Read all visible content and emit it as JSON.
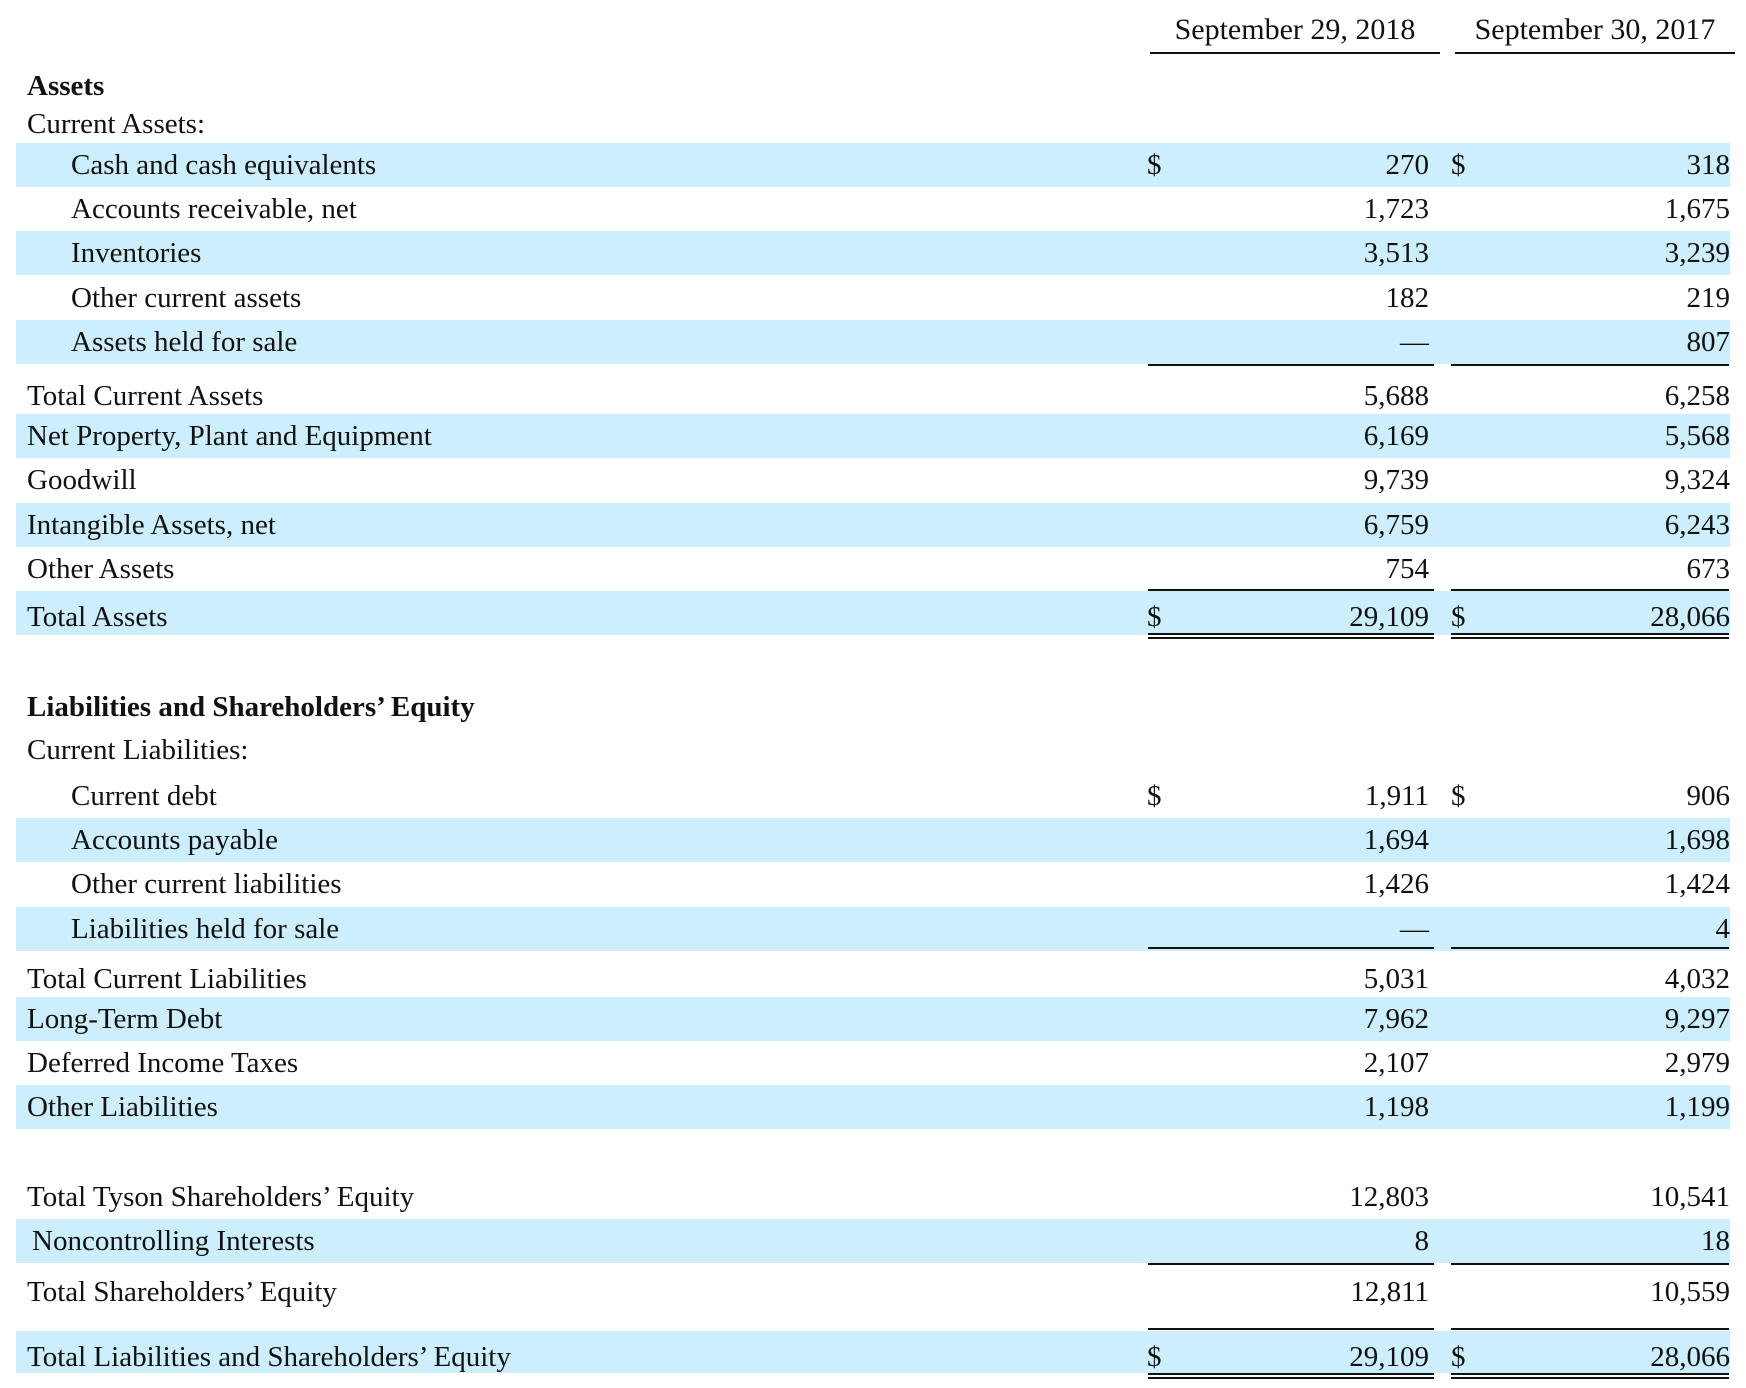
{
  "columns": {
    "col1_header": "September 29, 2018",
    "col2_header": "September 30, 2017"
  },
  "assets": {
    "heading": "Assets",
    "current_heading": "Current Assets:",
    "cash": {
      "label": "Cash and cash equivalents",
      "c1_dollar": "$",
      "c1": "270",
      "c2_dollar": "$",
      "c2": "318"
    },
    "receivable": {
      "label": "Accounts receivable, net",
      "c1": "1,723",
      "c2": "1,675"
    },
    "inventories": {
      "label": "Inventories",
      "c1": "3,513",
      "c2": "3,239"
    },
    "other_current": {
      "label": "Other current assets",
      "c1": "182",
      "c2": "219"
    },
    "held_for_sale": {
      "label": "Assets held for sale",
      "c1": "—",
      "c2": "807"
    },
    "total_current": {
      "label": "Total Current Assets",
      "c1": "5,688",
      "c2": "6,258"
    },
    "ppe": {
      "label": "Net Property, Plant and Equipment",
      "c1": "6,169",
      "c2": "5,568"
    },
    "goodwill": {
      "label": "Goodwill",
      "c1": "9,739",
      "c2": "9,324"
    },
    "intangible": {
      "label": "Intangible Assets, net",
      "c1": "6,759",
      "c2": "6,243"
    },
    "other_assets": {
      "label": "Other Assets",
      "c1": "754",
      "c2": "673"
    },
    "total": {
      "label": "Total Assets",
      "c1_dollar": "$",
      "c1": "29,109",
      "c2_dollar": "$",
      "c2": "28,066"
    }
  },
  "liabilities": {
    "heading": "Liabilities and Shareholders’ Equity",
    "current_heading": "Current Liabilities:",
    "current_debt": {
      "label": "Current debt",
      "c1_dollar": "$",
      "c1": "1,911",
      "c2_dollar": "$",
      "c2": "906"
    },
    "payable": {
      "label": "Accounts payable",
      "c1": "1,694",
      "c2": "1,698"
    },
    "other_current": {
      "label": "Other current liabilities",
      "c1": "1,426",
      "c2": "1,424"
    },
    "held_for_sale": {
      "label": "Liabilities held for sale",
      "c1": "—",
      "c2": "4"
    },
    "total_current": {
      "label": "Total Current Liabilities",
      "c1": "5,031",
      "c2": "4,032"
    },
    "long_term_debt": {
      "label": "Long-Term Debt",
      "c1": "7,962",
      "c2": "9,297"
    },
    "deferred_taxes": {
      "label": "Deferred Income Taxes",
      "c1": "2,107",
      "c2": "2,979"
    },
    "other_liabilities": {
      "label": "Other Liabilities",
      "c1": "1,198",
      "c2": "1,199"
    }
  },
  "equity": {
    "tyson": {
      "label": "Total Tyson Shareholders’ Equity",
      "c1": "12,803",
      "c2": "10,541"
    },
    "noncontrolling": {
      "label": "Noncontrolling Interests",
      "c1": "8",
      "c2": "18"
    },
    "total": {
      "label": "Total Shareholders’ Equity",
      "c1": "12,811",
      "c2": "10,559"
    },
    "total_liab_equity": {
      "label": "Total Liabilities and Shareholders’ Equity",
      "c1_dollar": "$",
      "c1": "29,109",
      "c2_dollar": "$",
      "c2": "28,066"
    }
  }
}
